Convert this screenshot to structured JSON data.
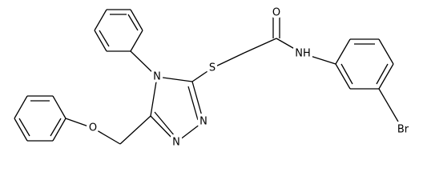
{
  "atoms": [
    {
      "label": "O"
    },
    {
      "label": "NH"
    },
    {
      "label": "Br"
    },
    {
      "label": "S"
    },
    {
      "label": "N"
    },
    {
      "label": "N"
    },
    {
      "label": "N"
    },
    {
      "label": "O"
    }
  ]
}
